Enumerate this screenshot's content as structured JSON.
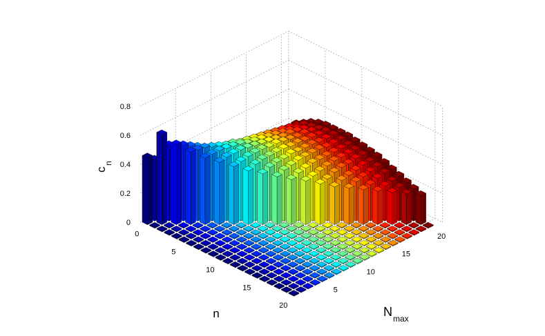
{
  "chart_data": {
    "type": "bar3d",
    "title": "",
    "xlabel": "n",
    "ylabel": "N",
    "ylabel_sub": "max",
    "zlabel": "c",
    "zlabel_sub": "n",
    "zlim": [
      0,
      0.8
    ],
    "z_ticks": [
      "0",
      "0.2",
      "0.4",
      "0.6",
      "0.8"
    ],
    "x_ticks": [
      "0",
      "5",
      "10",
      "15",
      "20"
    ],
    "y_ticks": [
      "5",
      "10",
      "15",
      "20"
    ],
    "n_range": [
      0,
      20
    ],
    "nmax_range": [
      1,
      20
    ],
    "colormap": "jet",
    "grid": true,
    "description_of_values": "c_n for n <= Nmax; zero otherwise",
    "values": [
      [
        0.46
      ],
      [
        0.42,
        0.62
      ],
      [
        0.36,
        0.52,
        0.55
      ],
      [
        0.33,
        0.47,
        0.52,
        0.5
      ],
      [
        0.3,
        0.43,
        0.49,
        0.49,
        0.46
      ],
      [
        0.28,
        0.4,
        0.46,
        0.48,
        0.46,
        0.43
      ],
      [
        0.26,
        0.37,
        0.43,
        0.46,
        0.46,
        0.44,
        0.4
      ],
      [
        0.24,
        0.35,
        0.41,
        0.44,
        0.45,
        0.44,
        0.41,
        0.37
      ],
      [
        0.23,
        0.33,
        0.39,
        0.42,
        0.44,
        0.44,
        0.42,
        0.39,
        0.35
      ],
      [
        0.22,
        0.31,
        0.37,
        0.41,
        0.43,
        0.43,
        0.42,
        0.4,
        0.37,
        0.33
      ],
      [
        0.21,
        0.3,
        0.36,
        0.39,
        0.41,
        0.42,
        0.42,
        0.4,
        0.38,
        0.35,
        0.31
      ],
      [
        0.2,
        0.29,
        0.34,
        0.38,
        0.4,
        0.41,
        0.41,
        0.4,
        0.38,
        0.36,
        0.33,
        0.3
      ],
      [
        0.19,
        0.27,
        0.33,
        0.37,
        0.39,
        0.4,
        0.41,
        0.4,
        0.39,
        0.37,
        0.34,
        0.31,
        0.28
      ],
      [
        0.18,
        0.26,
        0.32,
        0.36,
        0.38,
        0.39,
        0.4,
        0.39,
        0.38,
        0.37,
        0.35,
        0.32,
        0.29,
        0.26
      ],
      [
        0.18,
        0.25,
        0.31,
        0.35,
        0.37,
        0.38,
        0.39,
        0.39,
        0.38,
        0.37,
        0.35,
        0.33,
        0.31,
        0.28,
        0.25
      ],
      [
        0.17,
        0.25,
        0.3,
        0.34,
        0.36,
        0.38,
        0.38,
        0.38,
        0.38,
        0.37,
        0.35,
        0.34,
        0.32,
        0.29,
        0.27,
        0.24
      ],
      [
        0.16,
        0.24,
        0.29,
        0.33,
        0.35,
        0.37,
        0.38,
        0.38,
        0.37,
        0.36,
        0.35,
        0.34,
        0.32,
        0.3,
        0.28,
        0.25,
        0.23
      ],
      [
        0.16,
        0.23,
        0.28,
        0.32,
        0.34,
        0.36,
        0.37,
        0.37,
        0.37,
        0.36,
        0.35,
        0.34,
        0.33,
        0.31,
        0.29,
        0.27,
        0.24,
        0.22
      ],
      [
        0.15,
        0.22,
        0.27,
        0.31,
        0.34,
        0.35,
        0.36,
        0.37,
        0.37,
        0.36,
        0.35,
        0.34,
        0.33,
        0.31,
        0.3,
        0.28,
        0.25,
        0.23,
        0.21
      ],
      [
        0.15,
        0.22,
        0.27,
        0.3,
        0.33,
        0.35,
        0.36,
        0.36,
        0.36,
        0.36,
        0.35,
        0.34,
        0.33,
        0.32,
        0.3,
        0.28,
        0.26,
        0.24,
        0.22,
        0.2
      ]
    ]
  }
}
